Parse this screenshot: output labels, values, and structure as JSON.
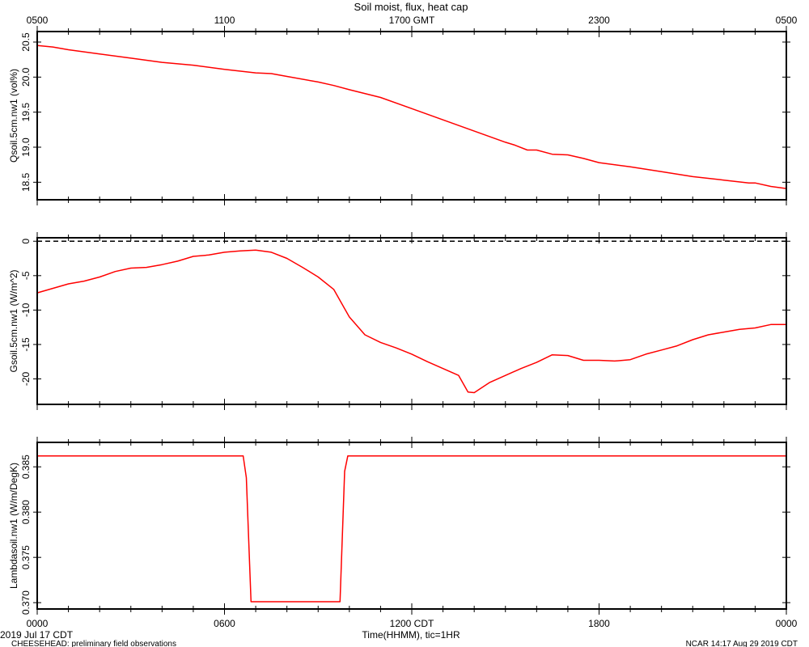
{
  "page": {
    "title": "Soil moist, flux, heat cap",
    "date_label": "2019 Jul 17 CDT",
    "project_label": "CHEESEHEAD: preliminary field observations",
    "credit_label": "NCAR 14:17 Aug 29 2019 CDT",
    "colors": {
      "line": "#ff0000",
      "axis": "#000000",
      "background": "#ffffff"
    }
  },
  "chart_data": {
    "type": "line",
    "title": "Soil moist, flux, heat cap",
    "x_unit": "hours (CDT)",
    "xlim": [
      0,
      24
    ],
    "xlabel": "Time(HHMM), tic=1HR",
    "top_axis": {
      "name": "GMT",
      "ticks": [
        {
          "x": 0,
          "label": "0500"
        },
        {
          "x": 6,
          "label": "1100"
        },
        {
          "x": 12,
          "label": "1700 GMT"
        },
        {
          "x": 18,
          "label": "2300"
        },
        {
          "x": 24,
          "label": "0500"
        }
      ]
    },
    "bottom_axis": {
      "name": "CDT",
      "ticks": [
        {
          "x": 0,
          "label": "0000"
        },
        {
          "x": 6,
          "label": "0600"
        },
        {
          "x": 12,
          "label": "1200 CDT"
        },
        {
          "x": 18,
          "label": "1800"
        },
        {
          "x": 24,
          "label": "0000"
        }
      ]
    },
    "panels": [
      {
        "id": "qsoil",
        "ylabel": "Qsoil.5cm.nw1 (vol%)",
        "ylim": [
          18.25,
          20.65
        ],
        "yticks": [
          18.5,
          19.0,
          19.5,
          20.0,
          20.5
        ],
        "yticklabels": [
          "18.5",
          "19.0",
          "19.5",
          "20.0",
          "20.5"
        ],
        "zero_line": false,
        "series": [
          {
            "x": [
              0,
              0.5,
              1,
              2,
              3,
              4,
              5,
              6,
              7,
              7.5,
              8,
              9,
              9.5,
              10,
              11,
              12,
              13,
              14,
              15,
              15.3,
              15.7,
              16,
              16.5,
              17,
              17.5,
              18,
              19,
              20,
              21,
              22,
              22.8,
              23,
              23.5,
              24
            ],
            "y": [
              20.45,
              20.43,
              20.39,
              20.33,
              20.27,
              20.21,
              20.17,
              20.11,
              20.06,
              20.05,
              20.01,
              19.93,
              19.88,
              19.82,
              19.71,
              19.55,
              19.39,
              19.23,
              19.07,
              19.03,
              18.96,
              18.96,
              18.9,
              18.89,
              18.84,
              18.78,
              18.72,
              18.65,
              18.58,
              18.53,
              18.49,
              18.49,
              18.44,
              18.41
            ]
          }
        ]
      },
      {
        "id": "gsoil",
        "ylabel": "Gsoil.5cm.nw1 (W/m^2)",
        "ylim": [
          -23.7,
          0.5
        ],
        "yticks": [
          -20,
          -15,
          -10,
          -5,
          0
        ],
        "yticklabels": [
          "-20",
          "-15",
          "-10",
          "-5",
          "0"
        ],
        "zero_line": true,
        "series": [
          {
            "x": [
              0,
              1,
              1.5,
              2,
              2.5,
              3,
              3.5,
              4,
              4.5,
              5,
              5.5,
              6,
              6.5,
              7,
              7.5,
              8,
              8.5,
              9,
              9.5,
              10,
              10.5,
              11,
              11.5,
              12,
              12.5,
              13,
              13.5,
              13.8,
              14,
              14.5,
              15,
              15.5,
              16,
              16.5,
              17,
              17.5,
              18,
              18.5,
              19,
              19.5,
              20,
              20.5,
              21,
              21.5,
              22,
              22.5,
              23,
              23.5,
              24
            ],
            "y": [
              -7.5,
              -6.2,
              -5.8,
              -5.2,
              -4.4,
              -3.9,
              -3.8,
              -3.4,
              -2.9,
              -2.2,
              -2.0,
              -1.6,
              -1.4,
              -1.3,
              -1.6,
              -2.5,
              -3.8,
              -5.2,
              -7.0,
              -11.0,
              -13.6,
              -14.7,
              -15.5,
              -16.4,
              -17.5,
              -18.5,
              -19.5,
              -21.9,
              -22.0,
              -20.5,
              -19.5,
              -18.5,
              -17.6,
              -16.5,
              -16.6,
              -17.3,
              -17.3,
              -17.4,
              -17.2,
              -16.4,
              -15.8,
              -15.2,
              -14.3,
              -13.6,
              -13.2,
              -12.8,
              -12.6,
              -12.1,
              -12.1
            ]
          }
        ]
      },
      {
        "id": "lambda",
        "ylabel": "Lambdasoil.nw1 (W/m/DegK)",
        "ylim": [
          0.3693,
          0.3877
        ],
        "yticks": [
          0.37,
          0.375,
          0.38,
          0.385
        ],
        "yticklabels": [
          "0.370",
          "0.375",
          "0.380",
          "0.385"
        ],
        "zero_line": false,
        "series": [
          {
            "x": [
              0,
              6.6,
              6.7,
              6.85,
              9.7,
              9.85,
              9.95,
              24
            ],
            "y": [
              0.3862,
              0.3862,
              0.3838,
              0.3701,
              0.3701,
              0.3845,
              0.3862,
              0.3862
            ]
          }
        ]
      }
    ]
  }
}
